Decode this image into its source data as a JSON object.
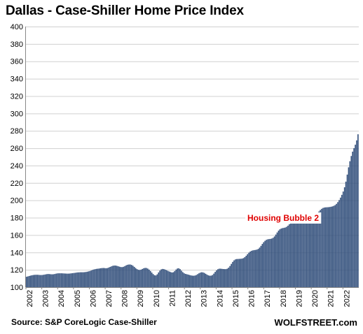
{
  "chart_data": {
    "type": "bar",
    "title": "Dallas - Case-Shiller Home Price Index",
    "source": "Source: S&P CoreLogic Case-Shiller",
    "brand": "WOLFSTREET.com",
    "annotation": "Housing Bubble 2",
    "ylim": [
      100,
      400
    ],
    "y_ticks": [
      100,
      120,
      140,
      160,
      180,
      200,
      220,
      240,
      260,
      280,
      300,
      320,
      340,
      360,
      380,
      400
    ],
    "x_tick_labels": [
      "2002",
      "2003",
      "2004",
      "2005",
      "2006",
      "2007",
      "2008",
      "2009",
      "2010",
      "2011",
      "2012",
      "2013",
      "2014",
      "2015",
      "2016",
      "2017",
      "2018",
      "2019",
      "2020",
      "2021",
      "2022"
    ],
    "grid": true,
    "bar_color": "#33507c",
    "annotation_color": "#e00000",
    "series": [
      {
        "values": [
          112.0,
          112.4,
          112.9,
          113.3,
          113.7,
          114.0,
          114.2,
          114.3,
          114.3,
          114.2,
          114.0,
          114.0,
          114.1,
          114.4,
          114.7,
          115.0,
          115.2,
          115.1,
          114.9,
          114.8,
          114.9,
          115.2,
          115.6,
          115.9,
          116.0,
          116.0,
          116.0,
          115.9,
          115.8,
          115.7,
          115.6,
          115.6,
          115.7,
          115.9,
          116.1,
          116.3,
          116.5,
          116.8,
          117.0,
          117.1,
          117.2,
          117.2,
          117.2,
          117.3,
          117.5,
          117.8,
          118.2,
          118.6,
          119.2,
          119.9,
          120.4,
          120.8,
          121.1,
          121.3,
          121.5,
          121.8,
          122.0,
          122.1,
          122.0,
          121.8,
          122.0,
          122.6,
          123.3,
          124.0,
          124.6,
          124.9,
          124.9,
          124.6,
          124.1,
          123.6,
          123.2,
          123.1,
          123.5,
          124.3,
          125.2,
          125.8,
          126.1,
          126.1,
          125.6,
          124.7,
          123.4,
          122.0,
          120.8,
          120.0,
          119.8,
          120.2,
          121.0,
          121.8,
          122.2,
          122.1,
          121.4,
          120.2,
          118.6,
          116.8,
          115.1,
          113.8,
          113.5,
          114.8,
          117.0,
          119.1,
          120.5,
          121.0,
          120.8,
          120.2,
          119.5,
          118.7,
          118.0,
          117.4,
          116.9,
          117.3,
          118.6,
          120.3,
          121.5,
          121.8,
          120.8,
          119.0,
          117.3,
          116.0,
          115.3,
          114.9,
          114.5,
          114.0,
          113.6,
          113.3,
          113.2,
          113.4,
          114.0,
          115.0,
          116.0,
          116.8,
          117.2,
          117.0,
          116.4,
          115.4,
          114.4,
          113.6,
          113.2,
          113.3,
          114.0,
          115.6,
          117.6,
          119.4,
          120.7,
          121.3,
          121.3,
          121.1,
          120.9,
          120.8,
          120.8,
          121.3,
          122.5,
          124.4,
          126.8,
          129.1,
          130.9,
          132.0,
          132.4,
          132.5,
          132.6,
          132.7,
          132.9,
          133.5,
          134.6,
          136.2,
          138.0,
          139.7,
          141.0,
          141.9,
          142.4,
          142.7,
          142.9,
          143.3,
          144.1,
          145.6,
          147.6,
          149.8,
          151.8,
          153.4,
          154.5,
          155.1,
          155.4,
          155.6,
          156.0,
          156.9,
          158.4,
          160.6,
          163.0,
          165.1,
          166.6,
          167.5,
          168.0,
          168.3,
          168.7,
          169.5,
          170.8,
          172.5,
          174.2,
          175.7,
          176.7,
          177.2,
          177.3,
          177.1,
          176.9,
          176.8,
          177.0,
          177.4,
          178.0,
          178.8,
          179.6,
          180.4,
          181.1,
          181.7,
          182.3,
          182.9,
          183.5,
          184.3,
          185.5,
          187.1,
          188.8,
          190.2,
          191.2,
          191.7,
          191.9,
          192.0,
          192.1,
          192.3,
          192.6,
          193.0,
          193.6,
          194.5,
          195.9,
          197.9,
          200.3,
          203.1,
          206.3,
          210.1,
          215.0,
          221.5,
          229.6,
          238.0,
          245.0,
          251.0,
          256.0,
          260.0,
          264.0,
          269.0,
          276.0
        ]
      }
    ]
  }
}
